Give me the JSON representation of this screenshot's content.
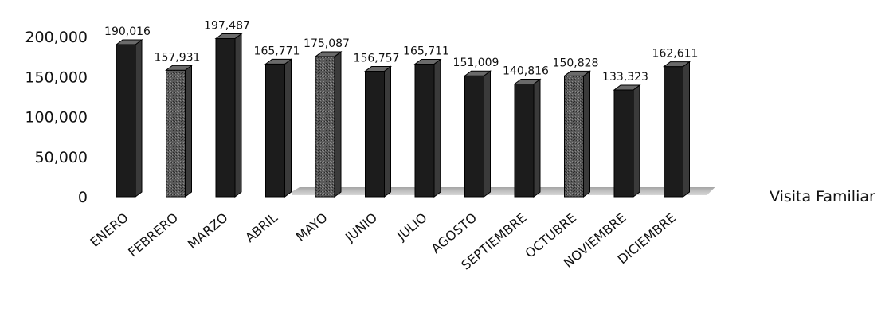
{
  "chart_data": {
    "type": "bar",
    "categories": [
      "ENERO",
      "FEBRERO",
      "MARZO",
      "ABRIL",
      "MAYO",
      "JUNIO",
      "JULIO",
      "AGOSTO",
      "SEPTIEMBRE",
      "OCTUBRE",
      "NOVIEMBRE",
      "DICIEMBRE"
    ],
    "series": [
      {
        "name": "Visita Familiar",
        "values": [
          190016,
          157931,
          197487,
          165771,
          175087,
          156757,
          165711,
          151009,
          140816,
          150828,
          133323,
          162611
        ],
        "value_labels": [
          "190,016",
          "157,931",
          "197,487",
          "165,771",
          "175,087",
          "156,757",
          "165,711",
          "151,009",
          "140,816",
          "150,828",
          "133,323",
          "162,611"
        ]
      }
    ],
    "yticks": [
      {
        "value": 0,
        "label": "0"
      },
      {
        "value": 50000,
        "label": "50,000"
      },
      {
        "value": 100000,
        "label": "100,000"
      },
      {
        "value": 150000,
        "label": "150,000"
      },
      {
        "value": 200000,
        "label": "200,000"
      }
    ],
    "ylim": [
      0,
      200000
    ],
    "grid": false,
    "legend": "right",
    "colors": {
      "dark_bar": "#1c1c1c",
      "light_bar": "#555555",
      "floor": "#8a8a8a"
    },
    "bar_shades": [
      "dark",
      "light",
      "dark",
      "dark",
      "light",
      "dark",
      "dark",
      "dark",
      "dark",
      "light",
      "dark",
      "dark"
    ]
  }
}
